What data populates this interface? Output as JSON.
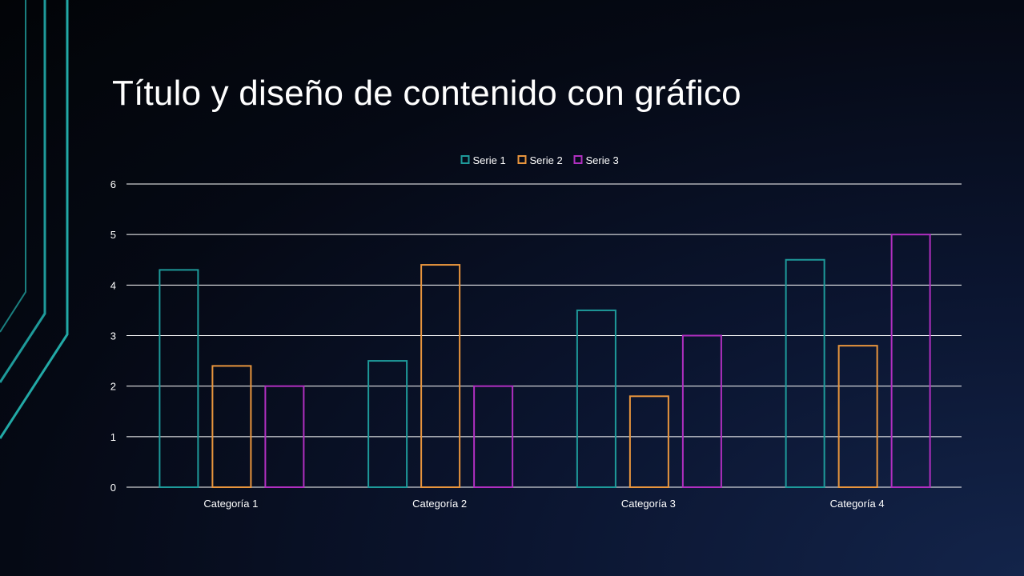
{
  "slide": {
    "title": "Título y diseño de contenido con gráfico"
  },
  "chart_data": {
    "type": "bar",
    "categories": [
      "Categoría 1",
      "Categoría 2",
      "Categoría 3",
      "Categoría 4"
    ],
    "series": [
      {
        "name": "Serie 1",
        "values": [
          4.3,
          2.5,
          3.5,
          4.5
        ],
        "color": "#1e9a9a"
      },
      {
        "name": "Serie 2",
        "values": [
          2.4,
          4.4,
          1.8,
          2.8
        ],
        "color": "#e8953d"
      },
      {
        "name": "Serie 3",
        "values": [
          2,
          2,
          3,
          5
        ],
        "color": "#b02fc0"
      }
    ],
    "yticks": [
      0,
      1,
      2,
      3,
      4,
      5,
      6
    ],
    "ylim": [
      0,
      6
    ],
    "title": "",
    "xlabel": "",
    "ylabel": "",
    "grid": true,
    "legend": "top",
    "bar_style": "outline"
  },
  "colors": {
    "gridline": "#ffffff",
    "accent": "#1e9a9a"
  }
}
